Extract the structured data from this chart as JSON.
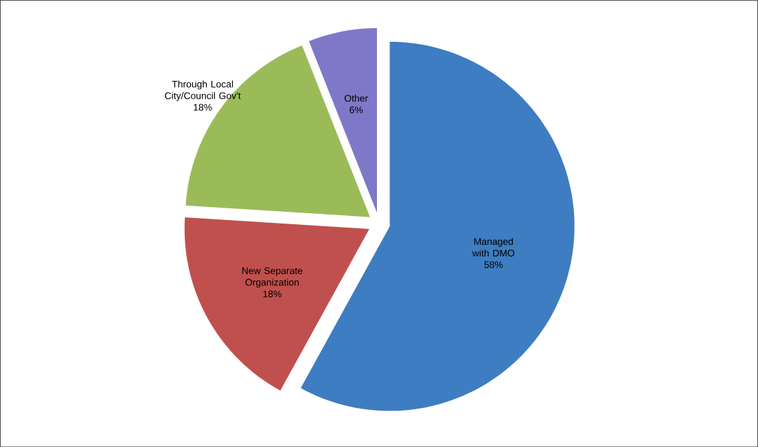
{
  "chart_data": {
    "type": "pie",
    "categories": [
      "Managed with DMO",
      "New Separate Organization",
      "Through Local City/Council Gov't",
      "Other"
    ],
    "values": [
      58,
      18,
      18,
      6
    ],
    "value_labels": [
      "58%",
      "18%",
      "18%",
      "6%"
    ],
    "colors": [
      "#3e7dc2",
      "#c0504d",
      "#9bbb59",
      "#7f78c8"
    ]
  }
}
